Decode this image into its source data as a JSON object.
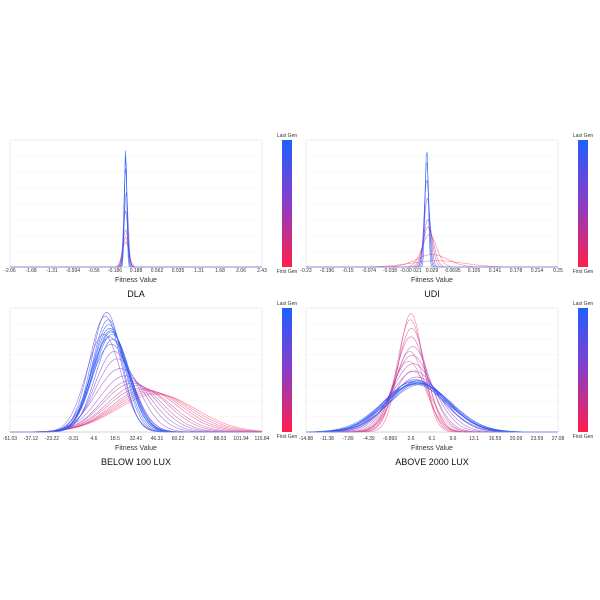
{
  "colorbar": {
    "top_label": "Last Gen",
    "bottom_label": "First Gen",
    "top_color": "#1f5fff",
    "mid_color": "#8a3dc8",
    "bottom_color": "#ff1f4a"
  },
  "chart_data": [
    {
      "type": "line",
      "title": "DLA",
      "xlabel": "Fitness Value",
      "ylabel": "",
      "xlim": [
        -2.06,
        2.43
      ],
      "ticks": [
        "-2.06",
        "-1.68",
        "-1.31",
        "-0.934",
        "-0.56",
        "-0.186",
        "0.188",
        "0.562",
        "0.935",
        "1.31",
        "1.68",
        "2.06",
        "2.43"
      ],
      "grid": true,
      "legend": "colorbar-right",
      "series": [
        {
          "mean": 0.0,
          "std": 0.02,
          "peak": 0.96,
          "gen": 1.0
        },
        {
          "mean": 0.0,
          "std": 0.025,
          "peak": 0.9,
          "gen": 0.9
        },
        {
          "mean": 0.0,
          "std": 0.03,
          "peak": 0.8,
          "gen": 0.8
        },
        {
          "mean": 0.01,
          "std": 0.035,
          "peak": 0.6,
          "gen": 0.7
        },
        {
          "mean": 0.0,
          "std": 0.04,
          "peak": 0.45,
          "gen": 0.6
        },
        {
          "mean": 0.0,
          "std": 0.045,
          "peak": 0.3,
          "gen": 0.4
        },
        {
          "mean": 0.0,
          "std": 0.05,
          "peak": 0.24,
          "gen": 0.2
        },
        {
          "mean": 0.0,
          "std": 0.06,
          "peak": 0.2,
          "gen": 0.0
        }
      ]
    },
    {
      "type": "line",
      "title": "UDI",
      "xlabel": "Fitness Value",
      "ylabel": "",
      "xlim": [
        -0.23,
        0.25
      ],
      "ticks": [
        "-0.23",
        "-0.196",
        "-0.15",
        "-0.074",
        "-0.038",
        "-0.00 021",
        "0.029",
        "0.0695",
        "0.105",
        "0.141",
        "0.178",
        "0.214",
        "0.25"
      ],
      "grid": true,
      "legend": "colorbar-right",
      "series": [
        {
          "mean": 0.0,
          "std": 0.003,
          "peak": 0.95,
          "gen": 1.0
        },
        {
          "mean": 0.0,
          "std": 0.004,
          "peak": 0.85,
          "gen": 0.85
        },
        {
          "mean": 0.0,
          "std": 0.005,
          "peak": 0.7,
          "gen": 0.7
        },
        {
          "mean": 0.001,
          "std": 0.006,
          "peak": 0.55,
          "gen": 0.55
        },
        {
          "mean": 0.002,
          "std": 0.008,
          "peak": 0.38,
          "gen": 0.4
        },
        {
          "mean": 0.003,
          "std": 0.01,
          "peak": 0.32,
          "gen": 0.25
        },
        {
          "mean": 0.005,
          "std": 0.014,
          "peak": 0.26,
          "gen": 0.12
        },
        {
          "mean": 0.01,
          "std": 0.03,
          "peak": 0.1,
          "gen": 0.05
        },
        {
          "mean": 0.02,
          "std": 0.05,
          "peak": 0.05,
          "gen": 0.0
        }
      ]
    },
    {
      "type": "line",
      "title": "BELOW 100 LUX",
      "xlabel": "Fitness Value",
      "ylabel": "",
      "xlim": [
        -51.03,
        115.84
      ],
      "ticks": [
        "-51.03",
        "-37.12",
        "-23.22",
        "-9.31",
        "4.6",
        "18.5",
        "32.41",
        "46.31",
        "60.22",
        "74.12",
        "88.03",
        "101.94",
        "115.84"
      ],
      "grid": true,
      "legend": "colorbar-right",
      "series": [
        {
          "mean": 15.0,
          "std": 11.5,
          "peak": 0.85,
          "gen": 1.0
        },
        {
          "mean": 15.5,
          "std": 11.5,
          "peak": 0.83,
          "gen": 0.97
        },
        {
          "mean": 16.0,
          "std": 11.8,
          "peak": 0.82,
          "gen": 0.95
        },
        {
          "mean": 14.5,
          "std": 11.0,
          "peak": 0.88,
          "gen": 0.92
        },
        {
          "mean": 16.5,
          "std": 12.0,
          "peak": 0.8,
          "gen": 0.9
        },
        {
          "mean": 15.0,
          "std": 12.5,
          "peak": 0.78,
          "gen": 0.87
        },
        {
          "mean": 17.0,
          "std": 11.5,
          "peak": 0.76,
          "gen": 0.85
        },
        {
          "mean": 14.0,
          "std": 10.5,
          "peak": 0.92,
          "gen": 0.82
        },
        {
          "mean": 13.0,
          "std": 10.0,
          "peak": 0.98,
          "gen": 0.78
        },
        {
          "mean": 12.0,
          "std": 10.5,
          "peak": 0.95,
          "gen": 0.74
        },
        {
          "mean": 16.0,
          "std": 13.0,
          "peak": 0.72,
          "gen": 0.7
        },
        {
          "mean": 18.0,
          "std": 12.5,
          "peak": 0.66,
          "gen": 0.65
        },
        {
          "mean": 11.0,
          "std": 11.5,
          "peak": 0.8,
          "gen": 0.6
        },
        {
          "mean": 20.0,
          "std": 14.0,
          "peak": 0.6,
          "gen": 0.55
        },
        {
          "mean": 22.0,
          "std": 16.0,
          "peak": 0.52,
          "gen": 0.5
        },
        {
          "mean": 25.0,
          "std": 17.0,
          "peak": 0.46,
          "gen": 0.45
        },
        {
          "mean": 28.0,
          "std": 18.0,
          "peak": 0.42,
          "gen": 0.4
        },
        {
          "mean": 30.0,
          "std": 19.0,
          "peak": 0.4,
          "gen": 0.35
        },
        {
          "mean": 33.0,
          "std": 20.0,
          "peak": 0.38,
          "gen": 0.3
        },
        {
          "mean": 35.0,
          "std": 21.0,
          "peak": 0.36,
          "gen": 0.25
        },
        {
          "mean": 38.0,
          "std": 22.0,
          "peak": 0.35,
          "gen": 0.2
        },
        {
          "mean": 40.0,
          "std": 23.0,
          "peak": 0.34,
          "gen": 0.15
        },
        {
          "mean": 42.0,
          "std": 24.0,
          "peak": 0.33,
          "gen": 0.1
        },
        {
          "mean": 44.0,
          "std": 25.0,
          "peak": 0.32,
          "gen": 0.05
        },
        {
          "mean": 46.0,
          "std": 26.0,
          "peak": 0.31,
          "gen": 0.0
        }
      ]
    },
    {
      "type": "line",
      "title": "ABOVE 2000 LUX",
      "xlabel": "Fitness Value",
      "ylabel": "",
      "xlim": [
        -14.88,
        27.08
      ],
      "ticks": [
        "-14.88",
        "-11.38",
        "-7.89",
        "-4.39",
        "-0.893",
        "2.6",
        "6.1",
        "9.6",
        "13.1",
        "16.59",
        "20.09",
        "23.59",
        "27.08"
      ],
      "grid": true,
      "legend": "colorbar-right",
      "series": [
        {
          "mean": 3.5,
          "std": 5.2,
          "peak": 0.4,
          "gen": 1.0
        },
        {
          "mean": 3.6,
          "std": 5.0,
          "peak": 0.41,
          "gen": 0.97
        },
        {
          "mean": 3.8,
          "std": 5.3,
          "peak": 0.4,
          "gen": 0.94
        },
        {
          "mean": 3.4,
          "std": 5.1,
          "peak": 0.42,
          "gen": 0.91
        },
        {
          "mean": 4.0,
          "std": 5.0,
          "peak": 0.4,
          "gen": 0.88
        },
        {
          "mean": 3.2,
          "std": 5.4,
          "peak": 0.39,
          "gen": 0.85
        },
        {
          "mean": 3.9,
          "std": 4.8,
          "peak": 0.42,
          "gen": 0.82
        },
        {
          "mean": 3.0,
          "std": 5.0,
          "peak": 0.41,
          "gen": 0.78
        },
        {
          "mean": 4.2,
          "std": 5.2,
          "peak": 0.39,
          "gen": 0.74
        },
        {
          "mean": 3.3,
          "std": 4.6,
          "peak": 0.43,
          "gen": 0.7
        },
        {
          "mean": 3.6,
          "std": 4.4,
          "peak": 0.45,
          "gen": 0.62
        },
        {
          "mean": 3.2,
          "std": 4.0,
          "peak": 0.5,
          "gen": 0.55
        },
        {
          "mean": 3.0,
          "std": 3.6,
          "peak": 0.56,
          "gen": 0.48
        },
        {
          "mean": 2.8,
          "std": 3.2,
          "peak": 0.63,
          "gen": 0.42
        },
        {
          "mean": 2.9,
          "std": 2.9,
          "peak": 0.7,
          "gen": 0.36
        },
        {
          "mean": 2.6,
          "std": 2.6,
          "peak": 0.78,
          "gen": 0.3
        },
        {
          "mean": 2.7,
          "std": 2.4,
          "peak": 0.85,
          "gen": 0.24
        },
        {
          "mean": 2.5,
          "std": 2.2,
          "peak": 0.92,
          "gen": 0.18
        },
        {
          "mean": 2.6,
          "std": 2.0,
          "peak": 0.97,
          "gen": 0.12
        },
        {
          "mean": 2.4,
          "std": 2.5,
          "peak": 0.66,
          "gen": 0.08
        },
        {
          "mean": 2.2,
          "std": 2.8,
          "peak": 0.58,
          "gen": 0.04
        },
        {
          "mean": 2.8,
          "std": 3.0,
          "peak": 0.5,
          "gen": 0.0
        }
      ]
    }
  ]
}
